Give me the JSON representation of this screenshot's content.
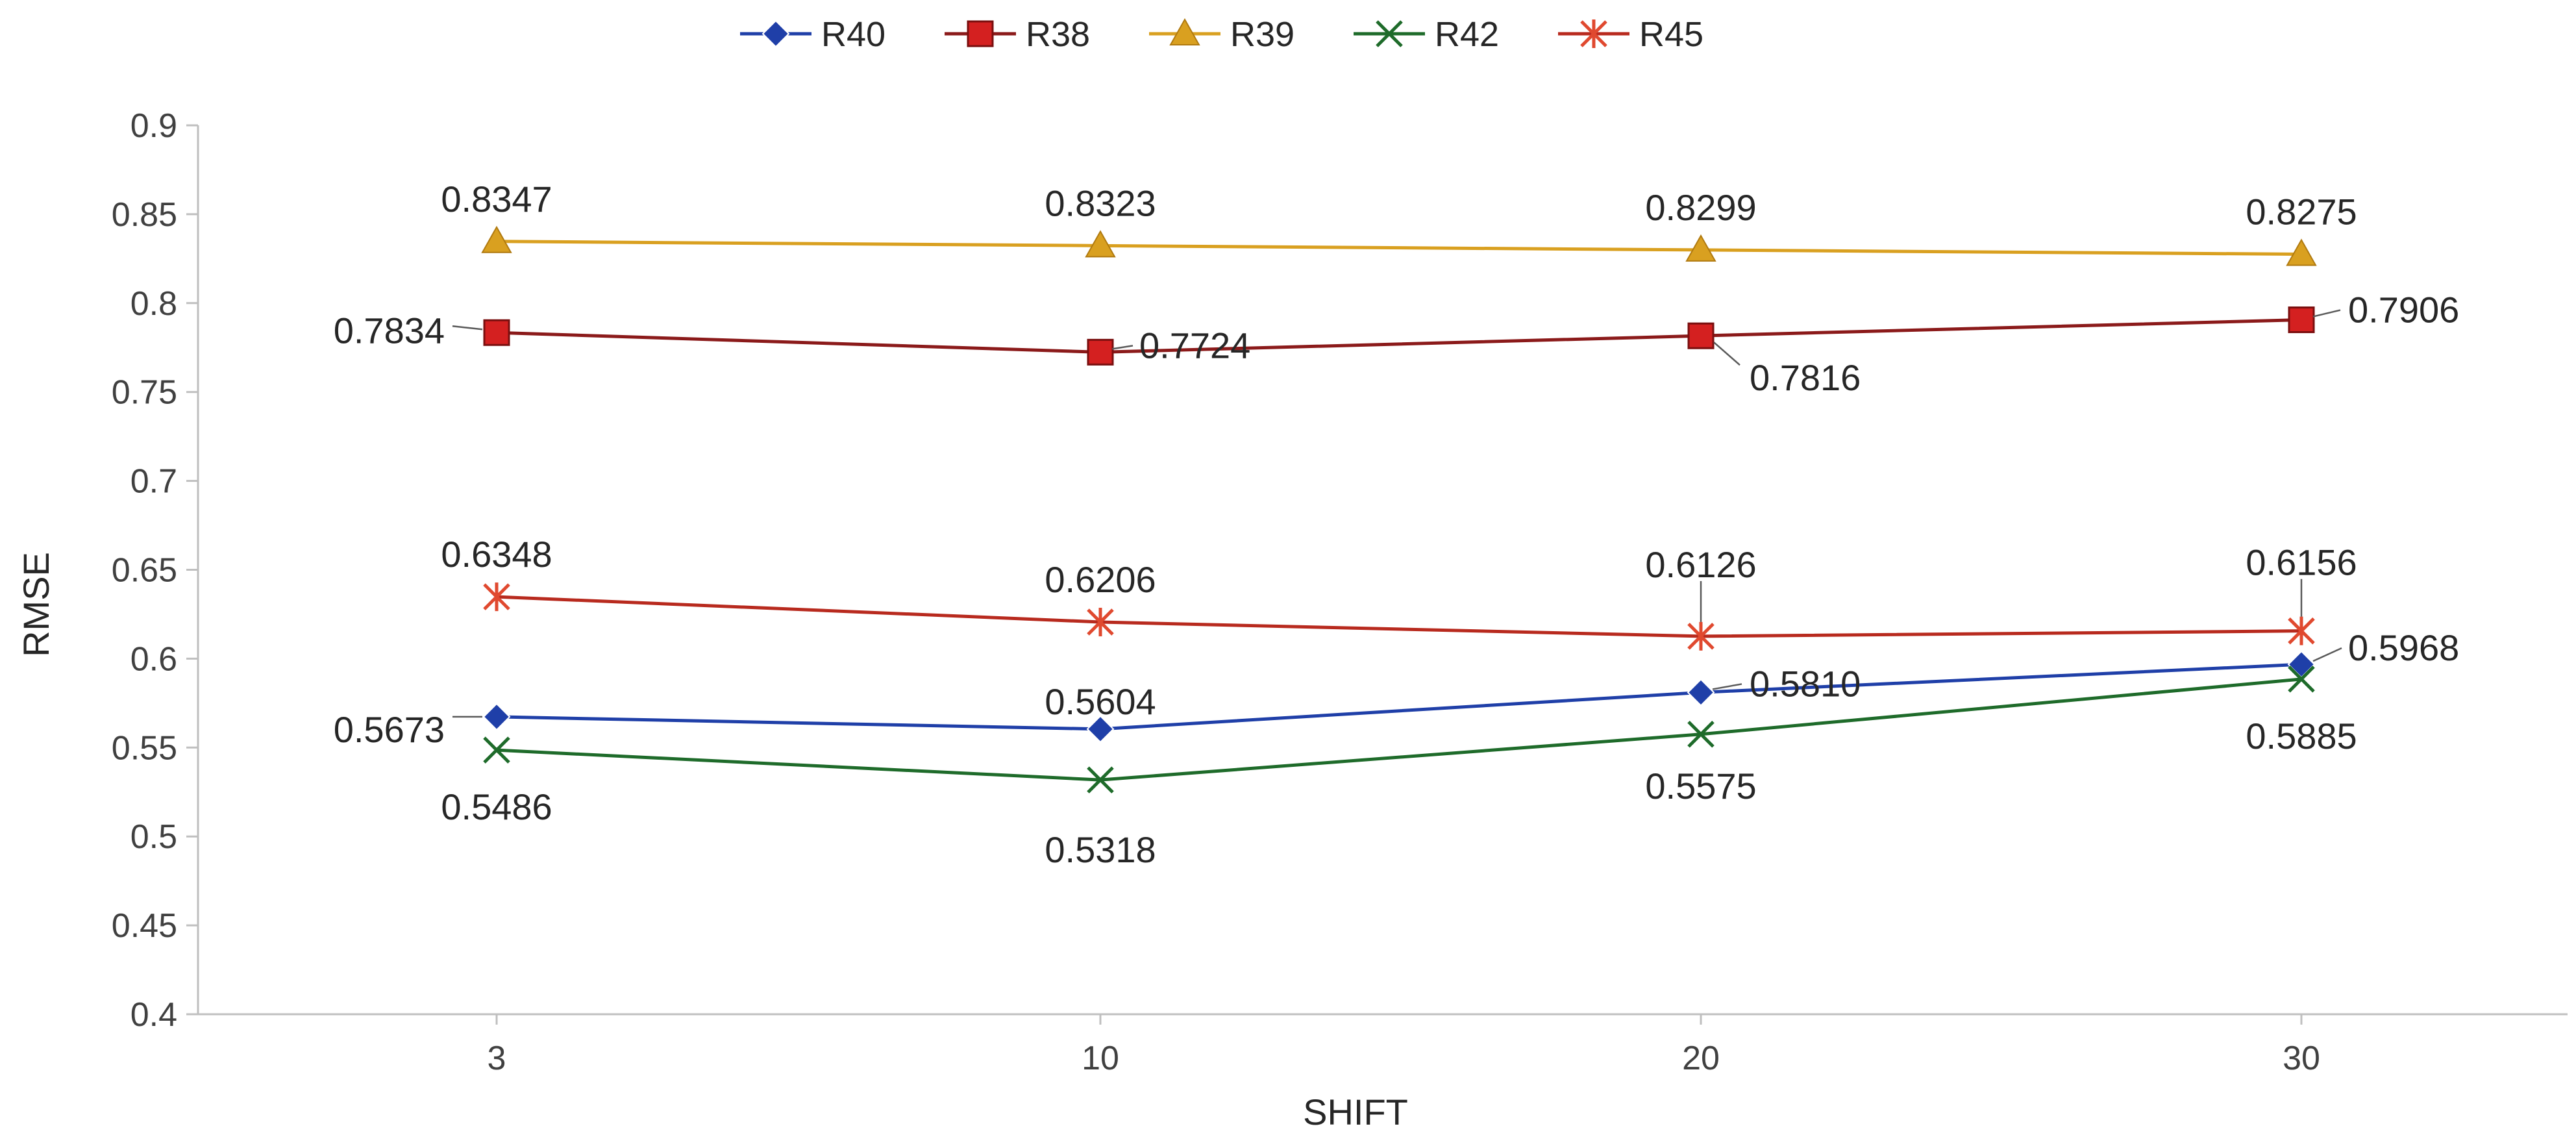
{
  "chart_data": {
    "type": "line",
    "title": "",
    "xlabel": "SHIFT",
    "ylabel": "RMSE",
    "ylim": [
      0.4,
      0.9
    ],
    "ytick_step": 0.05,
    "yticks": [
      "0.4",
      "0.45",
      "0.5",
      "0.55",
      "0.6",
      "0.65",
      "0.7",
      "0.75",
      "0.8",
      "0.85",
      "0.9"
    ],
    "categories": [
      "3",
      "10",
      "20",
      "30"
    ],
    "grid": "none",
    "legend_position": "top-center",
    "series": [
      {
        "name": "R40",
        "color": "#1F3FA8",
        "marker": "diamond",
        "values": [
          0.5673,
          0.5604,
          0.581,
          0.5968
        ],
        "labels": [
          "0.5673",
          "0.5604",
          "0.5810",
          "0.5968"
        ]
      },
      {
        "name": "R38",
        "color": "#8B1A1A",
        "markerColor": "#D42020",
        "marker": "square",
        "values": [
          0.7834,
          0.7724,
          0.7816,
          0.7906
        ],
        "labels": [
          "0.7834",
          "0.7724",
          "0.7816",
          "0.7906"
        ]
      },
      {
        "name": "R39",
        "color": "#D9A020",
        "marker": "triangle",
        "values": [
          0.8347,
          0.8323,
          0.8299,
          0.8275
        ],
        "labels": [
          "0.8347",
          "0.8323",
          "0.8299",
          "0.8275"
        ]
      },
      {
        "name": "R42",
        "color": "#1E6B2A",
        "marker": "x",
        "values": [
          0.5486,
          0.5318,
          0.5575,
          0.5885
        ],
        "labels": [
          "0.5486",
          "0.5318",
          "0.5575",
          "0.5885"
        ]
      },
      {
        "name": "R45",
        "color": "#B82A1E",
        "markerColor": "#E0492F",
        "marker": "star",
        "values": [
          0.6348,
          0.6206,
          0.6126,
          0.6156
        ],
        "labels": [
          "0.6348",
          "0.6206",
          "0.6126",
          "0.6156"
        ]
      }
    ]
  }
}
